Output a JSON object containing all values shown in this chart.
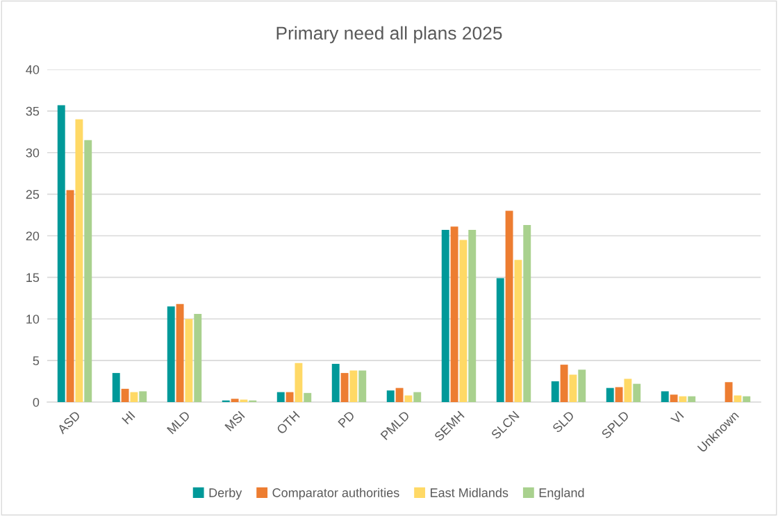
{
  "chart_data": {
    "type": "bar",
    "title": "Primary need all plans 2025",
    "categories": [
      "ASD",
      "HI",
      "MLD",
      "MSI",
      "OTH",
      "PD",
      "PMLD",
      "SEMH",
      "SLCN",
      "SLD",
      "SPLD",
      "VI",
      "Unknown"
    ],
    "series": [
      {
        "name": "Derby",
        "color": "#009999",
        "values": [
          35.7,
          3.5,
          11.5,
          0.2,
          1.2,
          4.6,
          1.4,
          20.7,
          14.9,
          2.5,
          1.7,
          1.3,
          null
        ]
      },
      {
        "name": "Comparator authorities",
        "color": "#ed7d31",
        "values": [
          25.5,
          1.6,
          11.8,
          0.4,
          1.2,
          3.5,
          1.7,
          21.1,
          23.0,
          4.5,
          1.8,
          0.9,
          2.4
        ]
      },
      {
        "name": "East Midlands",
        "color": "#ffd966",
        "values": [
          34.0,
          1.2,
          10.0,
          0.3,
          4.7,
          3.8,
          0.8,
          19.5,
          17.1,
          3.3,
          2.8,
          0.7,
          0.8
        ]
      },
      {
        "name": "England",
        "color": "#a9d18e",
        "values": [
          31.5,
          1.3,
          10.6,
          0.2,
          1.1,
          3.8,
          1.2,
          20.7,
          21.3,
          3.9,
          2.2,
          0.7,
          0.7
        ]
      }
    ],
    "ylim": [
      0,
      40
    ],
    "yticks": [
      0,
      5,
      10,
      15,
      20,
      25,
      30,
      35,
      40
    ],
    "grid": "y",
    "legend": "bottom"
  }
}
